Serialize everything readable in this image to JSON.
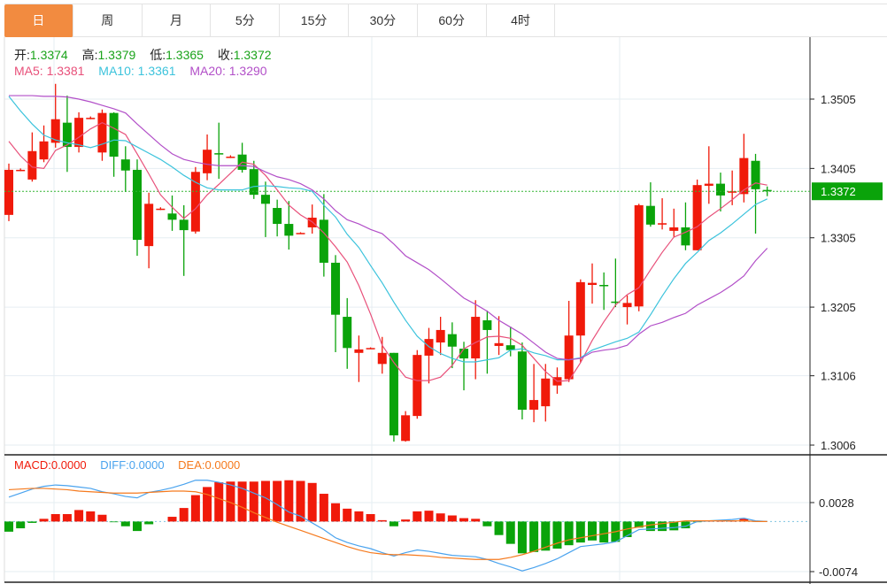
{
  "tabs": [
    {
      "label": "日",
      "active": true
    },
    {
      "label": "周"
    },
    {
      "label": "月"
    },
    {
      "label": "5分"
    },
    {
      "label": "15分"
    },
    {
      "label": "30分"
    },
    {
      "label": "60分"
    },
    {
      "label": "4时"
    }
  ],
  "ohlc_info": {
    "open_label": "开:",
    "open": "1.3374",
    "high_label": "高:",
    "high": "1.3379",
    "low_label": "低:",
    "low": "1.3365",
    "close_label": "收:",
    "close": "1.3372"
  },
  "ma_info": {
    "ma5_label": "MA5:",
    "ma5": "1.3381",
    "ma10_label": "MA10:",
    "ma10": "1.3361",
    "ma20_label": "MA20:",
    "ma20": "1.3290"
  },
  "macd_info": {
    "macd_label": "MACD:",
    "macd": "0.0000",
    "diff_label": "DIFF:",
    "diff": "0.0000",
    "dea_label": "DEA:",
    "dea": "0.0000"
  },
  "colors": {
    "up": "#f01a0a",
    "down": "#0aa30a",
    "ma5": "#e8507a",
    "ma10": "#3cc3dc",
    "ma20": "#b24fc8",
    "diff": "#4aa3ee",
    "dea": "#f57a1e",
    "label_green": "#1aa31a",
    "active_tab": "#f28b40"
  },
  "chart_data": [
    {
      "type": "candlestick",
      "ylim": [
        1.299,
        1.362
      ],
      "yticks": [
        "1.3505",
        "1.3405",
        "1.3305",
        "1.3205",
        "1.3106",
        "1.3006"
      ],
      "last_price": "1.3372",
      "grid": true,
      "candles": [
        [
          1.3338,
          1.3412,
          1.3329,
          1.3403
        ],
        [
          1.3403,
          1.3405,
          1.3401,
          1.3403
        ],
        [
          1.3389,
          1.3457,
          1.3386,
          1.343
        ],
        [
          1.3418,
          1.3467,
          1.3414,
          1.3444
        ],
        [
          1.3442,
          1.3527,
          1.3435,
          1.3476
        ],
        [
          1.3471,
          1.351,
          1.34,
          1.3436
        ],
        [
          1.3436,
          1.3486,
          1.3428,
          1.3478
        ],
        [
          1.3478,
          1.348,
          1.3476,
          1.3478
        ],
        [
          1.3428,
          1.349,
          1.3416,
          1.3485
        ],
        [
          1.3485,
          1.3486,
          1.3393,
          1.3422
        ],
        [
          1.3418,
          1.3437,
          1.3371,
          1.3402
        ],
        [
          1.3403,
          1.3418,
          1.3279,
          1.3302
        ],
        [
          1.3293,
          1.337,
          1.3261,
          1.3354
        ],
        [
          1.3347,
          1.3349,
          1.3345,
          1.3347
        ],
        [
          1.334,
          1.3366,
          1.3315,
          1.3331
        ],
        [
          1.3331,
          1.3352,
          1.325,
          1.3316
        ],
        [
          1.3314,
          1.3407,
          1.3311,
          1.34
        ],
        [
          1.3398,
          1.3454,
          1.3388,
          1.3432
        ],
        [
          1.3427,
          1.3471,
          1.339,
          1.3426
        ],
        [
          1.3421,
          1.3424,
          1.342,
          1.3422
        ],
        [
          1.3425,
          1.3442,
          1.3399,
          1.3403
        ],
        [
          1.3404,
          1.3416,
          1.3361,
          1.3367
        ],
        [
          1.3367,
          1.3386,
          1.3306,
          1.3354
        ],
        [
          1.3348,
          1.336,
          1.3307,
          1.3325
        ],
        [
          1.3325,
          1.3358,
          1.3288,
          1.3308
        ],
        [
          1.3311,
          1.3313,
          1.3311,
          1.3312
        ],
        [
          1.332,
          1.3353,
          1.3311,
          1.3334
        ],
        [
          1.3331,
          1.3368,
          1.3249,
          1.3269
        ],
        [
          1.3269,
          1.328,
          1.314,
          1.3194
        ],
        [
          1.3191,
          1.3218,
          1.3116,
          1.3146
        ],
        [
          1.3139,
          1.3164,
          1.3097,
          1.3144
        ],
        [
          1.3146,
          1.3147,
          1.3145,
          1.3146
        ],
        [
          1.3123,
          1.3162,
          1.3109,
          1.3139
        ],
        [
          1.3139,
          1.3139,
          1.3011,
          1.302
        ],
        [
          1.3012,
          1.3055,
          1.3011,
          1.3049
        ],
        [
          1.3048,
          1.3143,
          1.3044,
          1.3136
        ],
        [
          1.3135,
          1.3175,
          1.3095,
          1.3159
        ],
        [
          1.3154,
          1.3191,
          1.3136,
          1.3172
        ],
        [
          1.3166,
          1.3183,
          1.3117,
          1.3148
        ],
        [
          1.3145,
          1.3155,
          1.3085,
          1.3131
        ],
        [
          1.3131,
          1.3215,
          1.3101,
          1.3191
        ],
        [
          1.3186,
          1.32,
          1.3109,
          1.3172
        ],
        [
          1.3149,
          1.3192,
          1.3136,
          1.3153
        ],
        [
          1.315,
          1.3177,
          1.3134,
          1.3143
        ],
        [
          1.3141,
          1.3154,
          1.3043,
          1.3057
        ],
        [
          1.3057,
          1.3123,
          1.3039,
          1.3071
        ],
        [
          1.3062,
          1.3123,
          1.304,
          1.3102
        ],
        [
          1.3092,
          1.3118,
          1.308,
          1.3104
        ],
        [
          1.3101,
          1.3214,
          1.3097,
          1.3164
        ],
        [
          1.3164,
          1.3245,
          1.3125,
          1.3241
        ],
        [
          1.3237,
          1.3268,
          1.321,
          1.324
        ],
        [
          1.3237,
          1.3255,
          1.3201,
          1.3236
        ],
        [
          1.3213,
          1.3275,
          1.3205,
          1.3212
        ],
        [
          1.3205,
          1.3222,
          1.318,
          1.3211
        ],
        [
          1.3206,
          1.3354,
          1.3199,
          1.3352
        ],
        [
          1.3351,
          1.3385,
          1.3321,
          1.3324
        ],
        [
          1.3324,
          1.3362,
          1.3317,
          1.3326
        ],
        [
          1.3315,
          1.3347,
          1.3306,
          1.332
        ],
        [
          1.332,
          1.3356,
          1.3287,
          1.3294
        ],
        [
          1.3287,
          1.3389,
          1.3287,
          1.3381
        ],
        [
          1.338,
          1.3437,
          1.3354,
          1.3383
        ],
        [
          1.3383,
          1.3399,
          1.3343,
          1.3366
        ],
        [
          1.337,
          1.3402,
          1.3352,
          1.3372
        ],
        [
          1.3368,
          1.3455,
          1.3356,
          1.342
        ],
        [
          1.3416,
          1.3426,
          1.3311,
          1.3375
        ],
        [
          1.3374,
          1.3379,
          1.3365,
          1.3372
        ]
      ],
      "series": [
        {
          "name": "MA5",
          "values": [
            1.3444,
            1.3423,
            1.3407,
            1.3405,
            1.3431,
            1.3439,
            1.345,
            1.3462,
            1.3471,
            1.3463,
            1.3454,
            1.3426,
            1.3397,
            1.3367,
            1.3349,
            1.3333,
            1.3347,
            1.3367,
            1.3382,
            1.3398,
            1.3414,
            1.3411,
            1.3395,
            1.3374,
            1.3352,
            1.3338,
            1.3328,
            1.3312,
            1.3292,
            1.327,
            1.3236,
            1.3195,
            1.315,
            1.3125,
            1.3104,
            1.3099,
            1.3099,
            1.3104,
            1.3121,
            1.3145,
            1.3154,
            1.3162,
            1.3163,
            1.316,
            1.315,
            1.3131,
            1.3112,
            1.3098,
            1.3099,
            1.3125,
            1.3157,
            1.3184,
            1.3208,
            1.3223,
            1.3233,
            1.3259,
            1.3284,
            1.3306,
            1.3313,
            1.3321,
            1.3335,
            1.3347,
            1.336,
            1.3374,
            1.3384,
            1.3381
          ]
        },
        {
          "name": "MA10",
          "values": [
            1.3509,
            1.3488,
            1.3469,
            1.3453,
            1.3446,
            1.3442,
            1.3439,
            1.3435,
            1.344,
            1.3446,
            1.3445,
            1.3436,
            1.3427,
            1.3418,
            1.3407,
            1.3395,
            1.3385,
            1.3377,
            1.3374,
            1.3374,
            1.3374,
            1.3379,
            1.338,
            1.3379,
            1.3377,
            1.3376,
            1.3372,
            1.3352,
            1.3335,
            1.331,
            1.3291,
            1.3265,
            1.324,
            1.3212,
            1.3186,
            1.3163,
            1.3148,
            1.3138,
            1.3131,
            1.3126,
            1.3126,
            1.3129,
            1.3132,
            1.3143,
            1.3145,
            1.3139,
            1.3135,
            1.3129,
            1.3129,
            1.3132,
            1.3143,
            1.3149,
            1.3155,
            1.316,
            1.3169,
            1.3194,
            1.3221,
            1.3246,
            1.3268,
            1.3284,
            1.3301,
            1.3312,
            1.3325,
            1.3339,
            1.3353,
            1.3361
          ]
        },
        {
          "name": "MA20",
          "values": [
            1.351,
            1.351,
            1.351,
            1.3509,
            1.3509,
            1.3508,
            1.3505,
            1.3501,
            1.3496,
            1.3491,
            1.3485,
            1.3469,
            1.3454,
            1.3439,
            1.3426,
            1.3418,
            1.3414,
            1.3411,
            1.3409,
            1.3409,
            1.3409,
            1.3408,
            1.34,
            1.3393,
            1.3389,
            1.3383,
            1.3374,
            1.3361,
            1.3344,
            1.3331,
            1.3325,
            1.3317,
            1.3311,
            1.3296,
            1.3279,
            1.3269,
            1.3259,
            1.3246,
            1.3232,
            1.3218,
            1.3209,
            1.3199,
            1.3186,
            1.3176,
            1.3166,
            1.3153,
            1.314,
            1.3131,
            1.3129,
            1.3131,
            1.314,
            1.3143,
            1.3145,
            1.315,
            1.3166,
            1.3178,
            1.3183,
            1.319,
            1.3196,
            1.3208,
            1.3217,
            1.3226,
            1.3237,
            1.325,
            1.3272,
            1.329
          ]
        }
      ]
    },
    {
      "type": "bar+line",
      "ylim": [
        -0.009,
        0.01
      ],
      "yticks": [
        "0.0028",
        "-0.0074"
      ],
      "grid": true,
      "macd": [
        -0.0015,
        -0.001,
        -0.0002,
        0.0004,
        0.0011,
        0.0011,
        0.0017,
        0.0015,
        0.001,
        -0.0001,
        -0.0007,
        -0.0014,
        -0.0004,
        0.0,
        0.0007,
        0.002,
        0.0039,
        0.0051,
        0.0058,
        0.0059,
        0.0059,
        0.0059,
        0.006,
        0.006,
        0.0061,
        0.006,
        0.0057,
        0.0041,
        0.0027,
        0.0019,
        0.0015,
        0.0011,
        0.0002,
        -0.0007,
        0.0003,
        0.0015,
        0.0016,
        0.0012,
        0.0009,
        0.0005,
        0.0004,
        -0.0007,
        -0.002,
        -0.0033,
        -0.0047,
        -0.0045,
        -0.0043,
        -0.004,
        -0.0035,
        -0.0031,
        -0.0028,
        -0.0031,
        -0.003,
        -0.0023,
        -0.0009,
        -0.0014,
        -0.0014,
        -0.0013,
        -0.001,
        -0.0001,
        0.0001,
        0.0001,
        0.0001,
        0.0004,
        0.0,
        0.0
      ],
      "series": [
        {
          "name": "DIFF",
          "values": [
            0.0036,
            0.0042,
            0.0048,
            0.0052,
            0.0054,
            0.0053,
            0.0051,
            0.0049,
            0.0044,
            0.0041,
            0.0037,
            0.0035,
            0.0043,
            0.0046,
            0.005,
            0.0055,
            0.0061,
            0.0061,
            0.0058,
            0.0054,
            0.0049,
            0.0042,
            0.0035,
            0.0025,
            0.0014,
            0.0008,
            -0.0002,
            -0.0012,
            -0.0024,
            -0.0031,
            -0.0036,
            -0.004,
            -0.0046,
            -0.0051,
            -0.0046,
            -0.0042,
            -0.0044,
            -0.0047,
            -0.005,
            -0.0051,
            -0.0052,
            -0.0056,
            -0.0062,
            -0.0067,
            -0.0073,
            -0.0068,
            -0.0062,
            -0.0055,
            -0.0046,
            -0.0037,
            -0.0035,
            -0.0033,
            -0.003,
            -0.0021,
            -0.0012,
            -0.0011,
            -0.001,
            -0.0009,
            -0.0007,
            0.0,
            0.0001,
            0.0002,
            0.0003,
            0.0005,
            0.0001,
            0.0
          ]
        },
        {
          "name": "DEA",
          "values": [
            0.0047,
            0.0048,
            0.0049,
            0.0049,
            0.0048,
            0.0047,
            0.0045,
            0.0044,
            0.0043,
            0.0042,
            0.0042,
            0.0042,
            0.0043,
            0.0044,
            0.0045,
            0.0045,
            0.0044,
            0.004,
            0.0034,
            0.0028,
            0.0021,
            0.0013,
            0.0006,
            -0.0001,
            -0.0007,
            -0.0013,
            -0.0019,
            -0.0025,
            -0.0031,
            -0.0037,
            -0.0042,
            -0.0046,
            -0.0048,
            -0.0049,
            -0.0049,
            -0.005,
            -0.0051,
            -0.0053,
            -0.0054,
            -0.0055,
            -0.0056,
            -0.0056,
            -0.0056,
            -0.0053,
            -0.0049,
            -0.0044,
            -0.0038,
            -0.0032,
            -0.0027,
            -0.0024,
            -0.0021,
            -0.0018,
            -0.0015,
            -0.0011,
            -0.0008,
            -0.0005,
            -0.0003,
            -0.0001,
            0.0001,
            0.0001,
            0.0001,
            0.0001,
            0.0001,
            0.0001,
            0.0,
            0.0
          ]
        }
      ]
    }
  ]
}
